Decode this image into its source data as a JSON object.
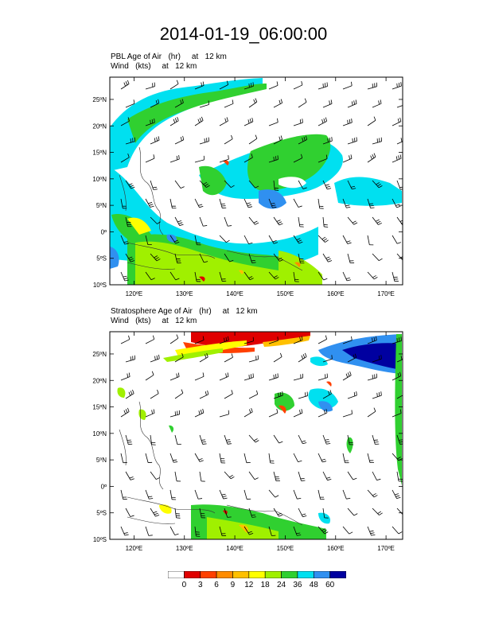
{
  "title": "2014-01-19_06:00:00",
  "panels": [
    {
      "title_line1": "PBL Age of Air   (hr)     at   12 km",
      "title_line2": "Wind   (kts)     at   12 km",
      "y_ticks": [
        "25ºN",
        "20ºN",
        "15ºN",
        "10ºN",
        "5ºN",
        "0º",
        "5ºS",
        "10ºS"
      ],
      "x_ticks": [
        "120ºE",
        "130ºE",
        "140ºE",
        "150ºE",
        "160ºE",
        "170ºE"
      ]
    },
    {
      "title_line1": "Stratosphere Age of Air   (hr)     at   12 km",
      "title_line2": "Wind   (kts)     at   12 km",
      "y_ticks": [
        "25ºN",
        "20ºN",
        "15ºN",
        "10ºN",
        "5ºN",
        "0º",
        "5ºS",
        "10ºS"
      ],
      "x_ticks": [
        "120ºE",
        "130ºE",
        "140ºE",
        "150ºE",
        "160ºE",
        "170ºE"
      ]
    }
  ],
  "colorbar": {
    "labels": [
      "0",
      "3",
      "6",
      "9",
      "12",
      "18",
      "24",
      "36",
      "48",
      "60"
    ],
    "colors": [
      "#ffffff",
      "#e00000",
      "#ff4000",
      "#ff8c00",
      "#ffc000",
      "#ffff00",
      "#a0f000",
      "#30d030",
      "#00e0f0",
      "#3090f0",
      "#0000a0"
    ]
  }
}
